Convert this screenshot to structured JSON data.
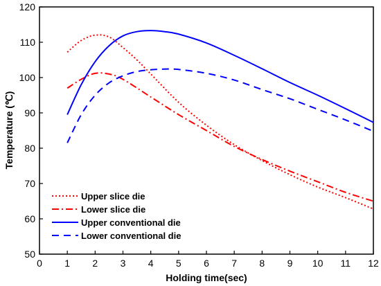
{
  "chart_data": {
    "type": "line",
    "xlabel": "Holding time(sec)",
    "ylabel": "Temperature (℃)",
    "xlim": [
      0,
      12
    ],
    "ylim": [
      50,
      120
    ],
    "xticks": [
      0,
      1,
      2,
      3,
      4,
      5,
      6,
      7,
      8,
      9,
      10,
      11,
      12
    ],
    "yticks": [
      50,
      60,
      70,
      80,
      90,
      100,
      110,
      120
    ],
    "grid": false,
    "legend_position": "bottom-left",
    "series": [
      {
        "name": "Upper slice die",
        "color": "#ff0000",
        "style": "dotted",
        "x": [
          1,
          1.5,
          2,
          2.5,
          3,
          3.5,
          4,
          5,
          6,
          7,
          8,
          9,
          10,
          11,
          12
        ],
        "y": [
          107.2,
          110.5,
          112.0,
          111.5,
          108.5,
          105.0,
          101.0,
          93.0,
          86.5,
          81.0,
          76.5,
          72.5,
          69.0,
          66.0,
          62.8
        ]
      },
      {
        "name": "Lower slice die",
        "color": "#ff0000",
        "style": "dashdot",
        "x": [
          1,
          1.5,
          2,
          2.5,
          3,
          4,
          5,
          6,
          7,
          8,
          9,
          10,
          11,
          12
        ],
        "y": [
          97.0,
          99.5,
          101.2,
          101.0,
          99.5,
          94.5,
          89.5,
          85.0,
          80.5,
          76.8,
          73.5,
          70.5,
          67.5,
          65.0
        ]
      },
      {
        "name": "Upper conventional die",
        "color": "#0000ff",
        "style": "solid",
        "x": [
          1,
          1.5,
          2,
          2.5,
          3,
          3.5,
          4,
          4.5,
          5,
          6,
          7,
          8,
          9,
          10,
          11,
          12
        ],
        "y": [
          89.5,
          98.0,
          104.5,
          109.0,
          111.8,
          113.0,
          113.3,
          113.0,
          112.3,
          109.8,
          106.3,
          102.5,
          98.6,
          95.0,
          91.2,
          87.3
        ]
      },
      {
        "name": "Lower conventional die",
        "color": "#0000ff",
        "style": "dashed",
        "x": [
          1,
          1.5,
          2,
          2.5,
          3,
          3.5,
          4,
          4.5,
          5,
          6,
          7,
          8,
          9,
          10,
          11,
          12
        ],
        "y": [
          81.5,
          89.5,
          95.0,
          98.5,
          100.5,
          101.7,
          102.2,
          102.4,
          102.3,
          101.2,
          99.3,
          96.6,
          94.0,
          91.0,
          88.0,
          84.8
        ]
      }
    ]
  }
}
